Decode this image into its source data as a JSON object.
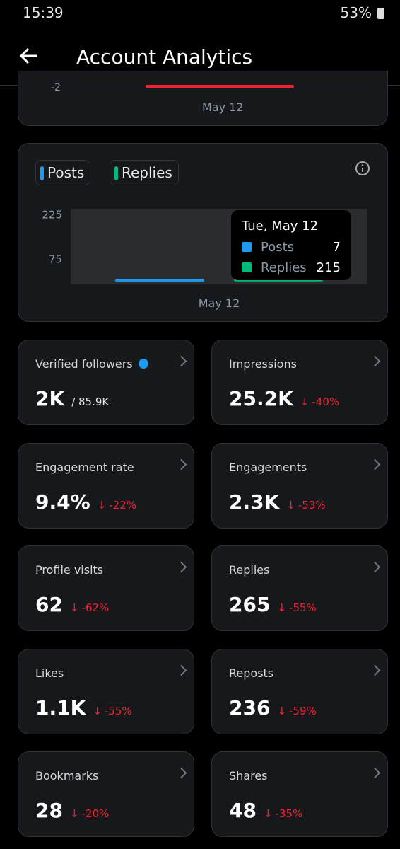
{
  "status_bar": {
    "time": "15:39",
    "battery": "53%"
  },
  "header": {
    "title": "Account Analytics"
  },
  "top_chart": {
    "ytick": "-2",
    "x_label": "May 12"
  },
  "chart_data": {
    "type": "bar",
    "categories": [
      "May 12"
    ],
    "series": [
      {
        "name": "Posts",
        "color": "#1d9bf0",
        "values": [
          7
        ]
      },
      {
        "name": "Replies",
        "color": "#00ba7c",
        "values": [
          215
        ]
      }
    ],
    "ylim": [
      -10,
      245
    ],
    "yticks": [
      75,
      225
    ],
    "tooltip_title": "Tue, May 12"
  },
  "metrics": [
    {
      "label": "Verified followers",
      "value": "2K",
      "total": "/ 85.9K"
    },
    {
      "label": "Impressions",
      "value": "25.2K",
      "change": "-40%"
    },
    {
      "label": "Engagement rate",
      "value": "9.4%",
      "change": "-22%"
    },
    {
      "label": "Engagements",
      "value": "2.3K",
      "change": "-53%"
    },
    {
      "label": "Profile visits",
      "value": "62",
      "change": "-62%"
    },
    {
      "label": "Replies",
      "value": "265",
      "change": "-55%"
    },
    {
      "label": "Likes",
      "value": "1.1K",
      "change": "-55%"
    },
    {
      "label": "Reposts",
      "value": "236",
      "change": "-59%"
    },
    {
      "label": "Bookmarks",
      "value": "28",
      "change": "-20%"
    },
    {
      "label": "Shares",
      "value": "48",
      "change": "-35%"
    }
  ]
}
